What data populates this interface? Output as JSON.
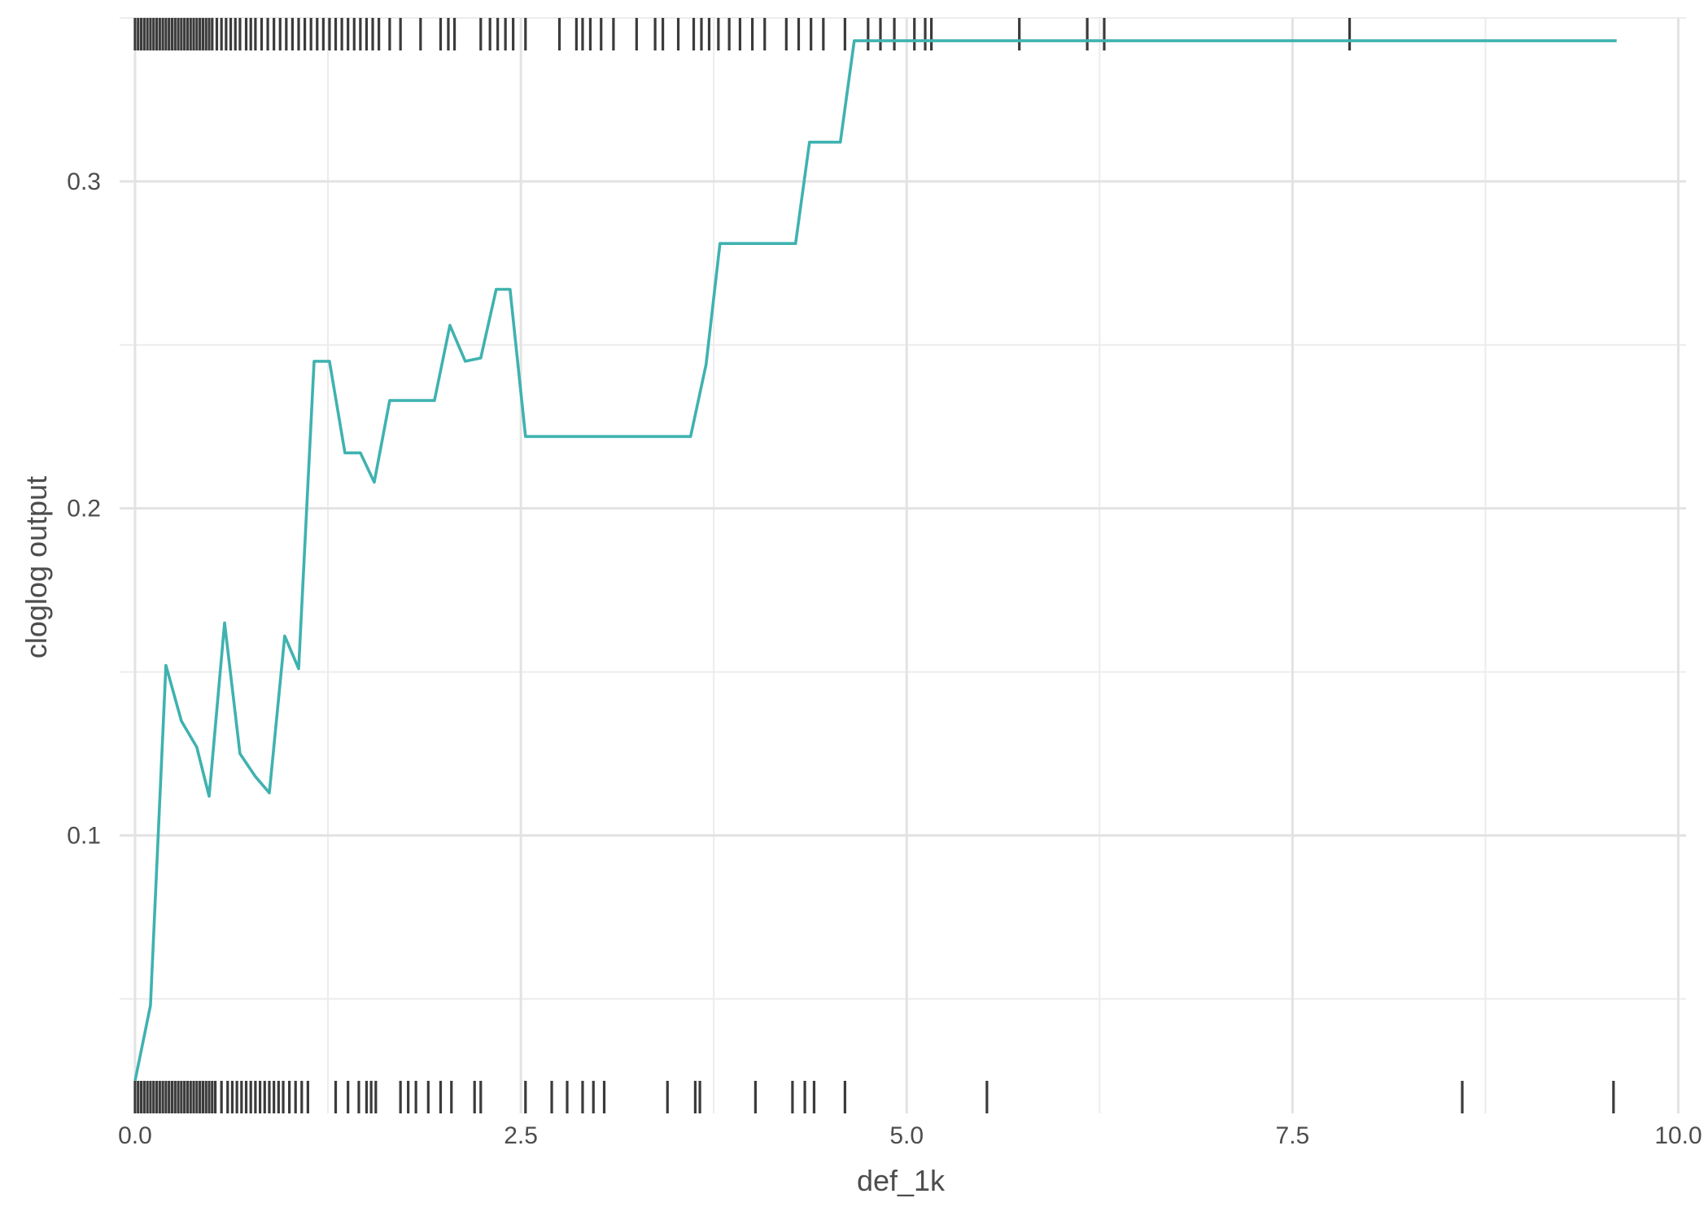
{
  "chart_data": {
    "type": "line",
    "title": "",
    "xlabel": "def_1k",
    "ylabel": "cloglog output",
    "xlim": [
      -0.1,
      10.05
    ],
    "ylim": [
      0.015,
      0.35
    ],
    "x_ticks": [
      0.0,
      2.5,
      5.0,
      7.5,
      10.0
    ],
    "x_tick_labels": [
      "0.0",
      "2.5",
      "5.0",
      "7.5",
      "10.0"
    ],
    "y_ticks": [
      0.1,
      0.2,
      0.3
    ],
    "y_tick_labels": [
      "0.1",
      "0.2",
      "0.3"
    ],
    "grid": true,
    "legend": "none",
    "colors": {
      "line": "#3fb2b0",
      "rug": "#3b3b3b",
      "grid": "#e3e3e3"
    },
    "series": [
      {
        "x": [
          0.0,
          0.1,
          0.2,
          0.3,
          0.4,
          0.48,
          0.58,
          0.68,
          0.78,
          0.87,
          0.97,
          1.06,
          1.16,
          1.26,
          1.36,
          1.46,
          1.55,
          1.65,
          1.75,
          1.85,
          1.94,
          2.04,
          2.14,
          2.24,
          2.34,
          2.43,
          2.53,
          2.63,
          2.72,
          2.82,
          2.92,
          3.02,
          3.11,
          3.21,
          3.31,
          3.41,
          3.5,
          3.6,
          3.7,
          3.79,
          3.89,
          3.99,
          4.08,
          4.18,
          4.28,
          4.37,
          4.47,
          4.57,
          4.66,
          4.76,
          5.0,
          6.0,
          7.0,
          8.0,
          9.0,
          9.6
        ],
        "y": [
          0.025,
          0.048,
          0.152,
          0.135,
          0.127,
          0.112,
          0.165,
          0.125,
          0.118,
          0.113,
          0.161,
          0.151,
          0.245,
          0.245,
          0.217,
          0.217,
          0.208,
          0.233,
          0.233,
          0.233,
          0.233,
          0.256,
          0.245,
          0.246,
          0.267,
          0.267,
          0.222,
          0.222,
          0.222,
          0.222,
          0.222,
          0.222,
          0.222,
          0.222,
          0.222,
          0.222,
          0.222,
          0.222,
          0.244,
          0.281,
          0.281,
          0.281,
          0.281,
          0.281,
          0.281,
          0.312,
          0.312,
          0.312,
          0.343,
          0.343,
          0.343,
          0.343,
          0.343,
          0.343,
          0.343,
          0.343
        ]
      }
    ],
    "rug_top": [
      0.0,
      0.02,
      0.04,
      0.06,
      0.08,
      0.1,
      0.12,
      0.14,
      0.16,
      0.18,
      0.2,
      0.22,
      0.24,
      0.26,
      0.28,
      0.3,
      0.32,
      0.34,
      0.36,
      0.38,
      0.4,
      0.42,
      0.44,
      0.46,
      0.48,
      0.5,
      0.53,
      0.56,
      0.59,
      0.62,
      0.65,
      0.68,
      0.72,
      0.75,
      0.78,
      0.82,
      0.86,
      0.9,
      0.94,
      0.98,
      1.02,
      1.06,
      1.1,
      1.14,
      1.18,
      1.22,
      1.26,
      1.3,
      1.34,
      1.38,
      1.42,
      1.46,
      1.5,
      1.54,
      1.58,
      1.65,
      1.72,
      1.85,
      1.98,
      2.03,
      2.07,
      2.24,
      2.3,
      2.35,
      2.4,
      2.45,
      2.53,
      2.75,
      2.86,
      2.9,
      2.95,
      3.02,
      3.1,
      3.25,
      3.37,
      3.42,
      3.52,
      3.62,
      3.67,
      3.72,
      3.78,
      3.85,
      3.92,
      4.0,
      4.08,
      4.22,
      4.3,
      4.38,
      4.46,
      4.6,
      4.75,
      4.83,
      4.92,
      5.05,
      5.12,
      5.16,
      5.73,
      6.17,
      6.28,
      7.87
    ],
    "rug_bottom": [
      0.0,
      0.02,
      0.04,
      0.06,
      0.08,
      0.1,
      0.12,
      0.14,
      0.16,
      0.18,
      0.2,
      0.22,
      0.24,
      0.26,
      0.28,
      0.3,
      0.32,
      0.34,
      0.36,
      0.38,
      0.4,
      0.42,
      0.44,
      0.46,
      0.48,
      0.5,
      0.52,
      0.56,
      0.6,
      0.63,
      0.66,
      0.69,
      0.72,
      0.75,
      0.78,
      0.81,
      0.84,
      0.87,
      0.9,
      0.93,
      0.96,
      1.0,
      1.04,
      1.08,
      1.12,
      1.3,
      1.38,
      1.45,
      1.5,
      1.53,
      1.56,
      1.72,
      1.77,
      1.82,
      1.9,
      1.98,
      2.05,
      2.2,
      2.24,
      2.53,
      2.7,
      2.8,
      2.9,
      2.97,
      3.04,
      3.45,
      3.63,
      3.66,
      4.02,
      4.26,
      4.34,
      4.4,
      4.6,
      5.52,
      8.6,
      9.58
    ]
  }
}
